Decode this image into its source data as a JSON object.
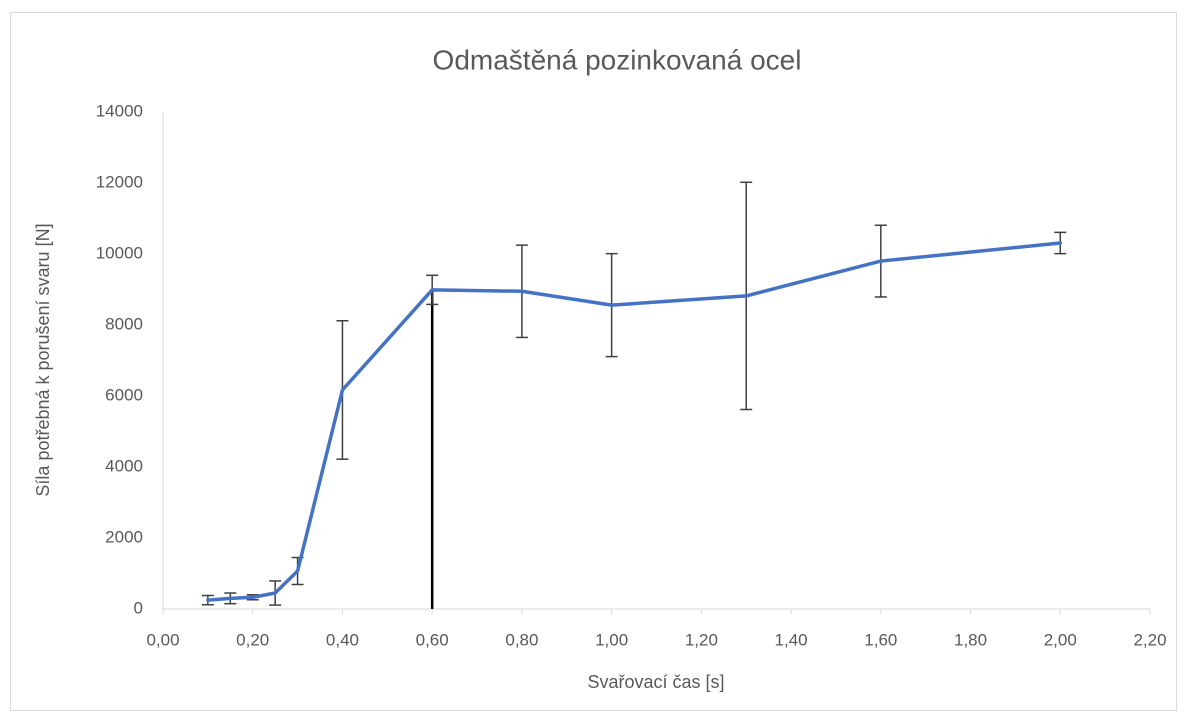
{
  "chart_data": {
    "type": "line",
    "title": "Odmaštěná pozinkovaná ocel",
    "x_label": "Svařovací čas [s]",
    "y_label": "Síla potřebná k porušení svaru [N]",
    "x": [
      0.1,
      0.15,
      0.2,
      0.25,
      0.3,
      0.4,
      0.6,
      0.8,
      1.0,
      1.3,
      1.6,
      2.0
    ],
    "series": [
      {
        "name": "Odmaštěná pozinkovaná ocel",
        "color": "#4472c4",
        "values": [
          250,
          300,
          330,
          450,
          1070,
          6170,
          8990,
          8950,
          8560,
          8820,
          9800,
          10310
        ],
        "errors": [
          130,
          150,
          70,
          340,
          380,
          1950,
          410,
          1300,
          1450,
          3200,
          1010,
          300
        ]
      }
    ],
    "error_color": "#404040",
    "vertical_line": {
      "x": 0.6,
      "y": 8990,
      "color": "#000000"
    },
    "xlim": [
      0,
      2.2
    ],
    "xticks": [
      {
        "value": 0,
        "label": "0,00"
      },
      {
        "value": 0.2,
        "label": "0,20"
      },
      {
        "value": 0.4,
        "label": "0,40"
      },
      {
        "value": 0.6,
        "label": "0,60"
      },
      {
        "value": 0.8,
        "label": "0,80"
      },
      {
        "value": 1.0,
        "label": "1,00"
      },
      {
        "value": 1.2,
        "label": "1,20"
      },
      {
        "value": 1.4,
        "label": "1,40"
      },
      {
        "value": 1.6,
        "label": "1,60"
      },
      {
        "value": 1.8,
        "label": "1,80"
      },
      {
        "value": 2.0,
        "label": "2,00"
      },
      {
        "value": 2.2,
        "label": "2,20"
      }
    ],
    "ylim": [
      0,
      14000
    ],
    "yticks": [
      0,
      2000,
      4000,
      6000,
      8000,
      10000,
      12000,
      14000
    ],
    "grid": false
  }
}
